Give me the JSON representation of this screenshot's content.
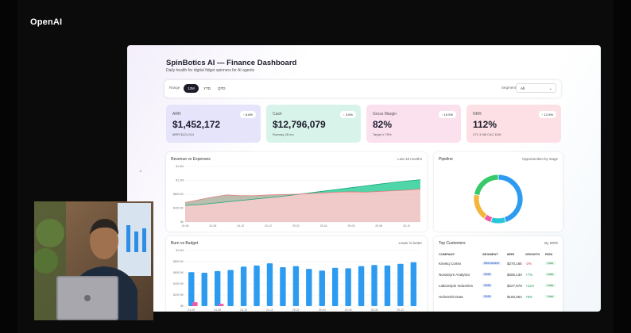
{
  "brand": "OpenAI",
  "dashboard": {
    "title": "SpinBotics AI — Finance Dashboard",
    "subtitle": "Daily health for digital fidget spinners for AI agents",
    "range_label": "Range",
    "range_options": [
      "12M",
      "YTD",
      "QTD"
    ],
    "segment_label": "Segment",
    "segment_value": "All"
  },
  "kpis": [
    {
      "label": "ARR",
      "value": "$1,452,172",
      "note": "MRR $121,014",
      "badge": "6.8%",
      "direction": "up",
      "color": "#e6e4fb"
    },
    {
      "label": "Cash",
      "value": "$12,796,079",
      "note": "Runway 28 mo",
      "badge": "3.6%",
      "direction": "down",
      "color": "#d8f4ea"
    },
    {
      "label": "Gross Margin",
      "value": "82%",
      "note": "Target ≥ 75%",
      "badge": "10.5%",
      "direction": "up",
      "color": "#fbe0ee"
    },
    {
      "label": "NRR",
      "value": "112%",
      "note": "LTV 3.0M  CAC 8.0K",
      "badge": "12.5%",
      "direction": "up",
      "color": "#fde0e6"
    }
  ],
  "revenue_card": {
    "title": "Revenue vs Expenses",
    "note": "Last 18 months"
  },
  "pipeline_card": {
    "title": "Pipeline",
    "note": "Opportunities by stage"
  },
  "burn_card": {
    "title": "Burn vs Budget",
    "note": "Lower is better"
  },
  "customers_card": {
    "title": "Top Customers",
    "note": "By MRR",
    "headers": [
      "COMPANY",
      "SEGMENT",
      "MRR",
      "GROWTH",
      "RISK"
    ],
    "rows": [
      {
        "company": "Kinetiq Cortex",
        "segment": "Mid-Market",
        "mrr": "$270,165",
        "growth": "-2%",
        "growth_dir": "down",
        "risk": "Low"
      },
      {
        "company": "NovaGyre Analytics",
        "segment": "SMB",
        "mrr": "$266,130",
        "growth": "+7%",
        "growth_dir": "up",
        "risk": "Low"
      },
      {
        "company": "LatticeSpin Industries",
        "segment": "SMB",
        "mrr": "$227,979",
        "growth": "+11%",
        "growth_dir": "up",
        "risk": "Low"
      },
      {
        "company": "HelixOrbit Data",
        "segment": "SMB",
        "mrr": "$165,554",
        "growth": "+9%",
        "growth_dir": "up",
        "risk": "Low"
      }
    ]
  },
  "chart_data": [
    {
      "type": "area",
      "title": "Revenue vs Expenses",
      "x": [
        "24-06",
        "24-07",
        "24-08",
        "24-09",
        "24-10",
        "24-11",
        "24-12",
        "25-01",
        "25-02",
        "25-03",
        "25-04",
        "25-05",
        "25-06",
        "25-07",
        "25-08",
        "25-09",
        "25-10",
        "25-11"
      ],
      "ylim": [
        0,
        1600
      ],
      "yticks": [
        "$0",
        "$400.0K",
        "$800.0K",
        "$1.2M",
        "$1.6M"
      ],
      "xticks": [
        "24-06",
        "24-08",
        "24-10",
        "24-12",
        "25-02",
        "25-04",
        "25-06",
        "25-08",
        "25-10"
      ],
      "series": [
        {
          "values": [
            480,
            500,
            540,
            580,
            620,
            660,
            700,
            740,
            790,
            840,
            890,
            940,
            990,
            1040,
            1090,
            1140,
            1180,
            1220
          ],
          "color": "#2fcf9a"
        },
        {
          "values": [
            560,
            640,
            720,
            780,
            760,
            760,
            780,
            790,
            800,
            820,
            840,
            860,
            870,
            860,
            880,
            900,
            920,
            950
          ],
          "color": "#e07c7c"
        }
      ]
    },
    {
      "type": "pie",
      "title": "Pipeline",
      "values": [
        45,
        10,
        5,
        18,
        22
      ],
      "colors": [
        "#2d9cf0",
        "#27c7d9",
        "#ef5aa6",
        "#f4b63a",
        "#38c96a"
      ]
    },
    {
      "type": "bar",
      "title": "Burn vs Budget",
      "categories": [
        "24-06",
        "24-07",
        "24-08",
        "24-09",
        "24-10",
        "24-11",
        "24-12",
        "25-01",
        "25-02",
        "25-03",
        "25-04",
        "25-05",
        "25-06",
        "25-07",
        "25-08",
        "25-09",
        "25-10",
        "25-11"
      ],
      "ylim": [
        0,
        1000
      ],
      "yticks": [
        "$0",
        "$200.0K",
        "$400.0K",
        "$600.0K",
        "$800.0K",
        "$1.0M"
      ],
      "xticks": [
        "24-06",
        "24-08",
        "24-10",
        "24-12",
        "25-02",
        "25-04",
        "25-06",
        "25-08",
        "25-10"
      ],
      "series": [
        {
          "values": [
            610,
            600,
            630,
            650,
            710,
            730,
            770,
            700,
            720,
            670,
            640,
            690,
            680,
            720,
            740,
            730,
            760,
            790
          ],
          "color": "#2d9cf0"
        },
        {
          "values": [
            70,
            0,
            40,
            0,
            0,
            0,
            0,
            0,
            0,
            0,
            0,
            0,
            0,
            0,
            0,
            0,
            0,
            0
          ],
          "color": "#ef5aa6"
        }
      ]
    }
  ]
}
